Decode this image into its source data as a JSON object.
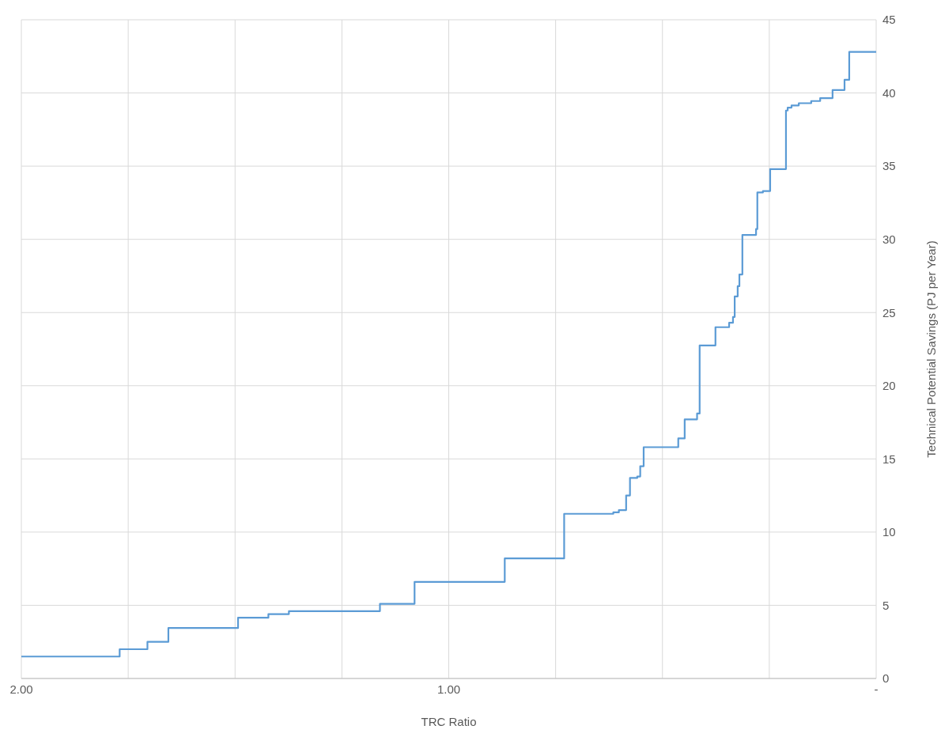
{
  "chart_data": {
    "type": "step",
    "xlabel": "TRC Ratio",
    "ylabel": "Technical Potential Savings (PJ per Year)",
    "x": [
      2.0,
      1.77,
      1.705,
      1.656,
      1.493,
      1.422,
      1.374,
      1.161,
      1.08,
      0.869,
      0.73,
      0.615,
      0.602,
      0.585,
      0.576,
      0.559,
      0.552,
      0.544,
      0.463,
      0.448,
      0.419,
      0.413,
      0.376,
      0.344,
      0.335,
      0.331,
      0.324,
      0.32,
      0.313,
      0.281,
      0.278,
      0.265,
      0.248,
      0.211,
      0.207,
      0.198,
      0.181,
      0.152,
      0.131,
      0.102,
      0.074,
      0.063,
      0.0
    ],
    "series": [
      {
        "color": "#5b9bd5",
        "values": [
          1.5,
          2.0,
          2.5,
          3.45,
          4.15,
          4.4,
          4.6,
          5.1,
          6.6,
          8.2,
          11.25,
          11.35,
          11.5,
          12.5,
          13.7,
          13.8,
          14.5,
          15.8,
          16.4,
          17.7,
          18.1,
          22.75,
          24.0,
          24.3,
          24.7,
          26.1,
          26.8,
          27.6,
          30.3,
          30.7,
          33.2,
          33.3,
          34.8,
          38.8,
          39.0,
          39.15,
          39.3,
          39.45,
          39.65,
          40.2,
          40.9,
          42.8,
          42.8
        ]
      }
    ],
    "xlim": [
      2,
      0
    ],
    "xticks": [
      {
        "value": 2,
        "label": "2.00"
      },
      {
        "value": 1.75,
        "label": null
      },
      {
        "value": 1.5,
        "label": null
      },
      {
        "value": 1.25,
        "label": null
      },
      {
        "value": 1,
        "label": "1.00"
      },
      {
        "value": 0.75,
        "label": null
      },
      {
        "value": 0.5,
        "label": null
      },
      {
        "value": 0.25,
        "label": null
      },
      {
        "value": 0,
        "label": "-"
      }
    ],
    "ylim": [
      0,
      45
    ],
    "yticks": [
      0,
      5,
      10,
      15,
      20,
      25,
      30,
      35,
      40,
      45
    ],
    "grid": true,
    "marker": "none",
    "line_style": "solid"
  }
}
